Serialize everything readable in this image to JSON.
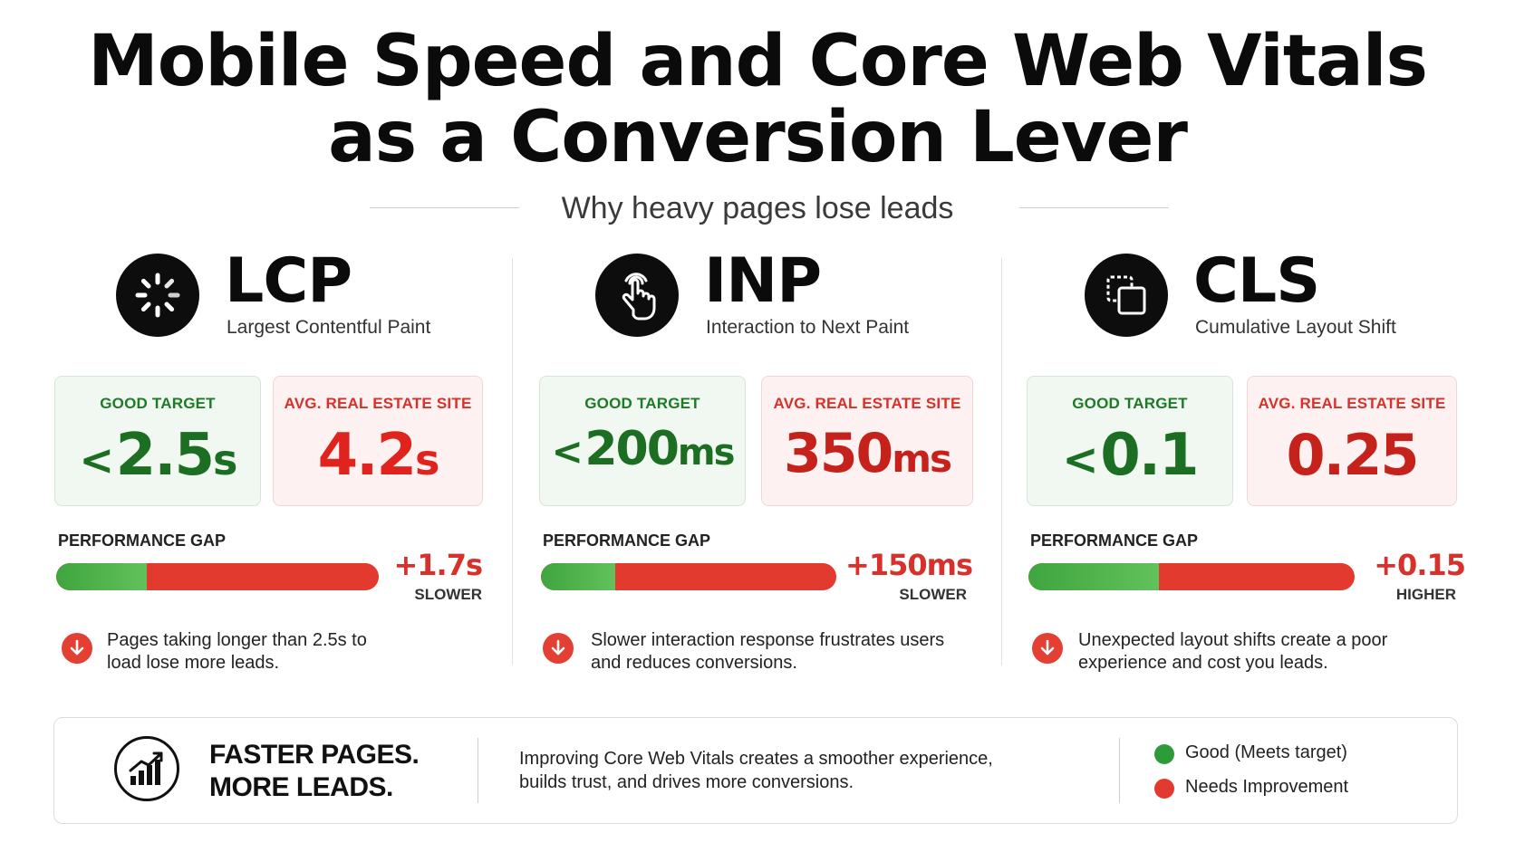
{
  "title": {
    "line1": "Mobile Speed and Core Web Vitals",
    "line2": "as a Conversion Lever"
  },
  "subtitle": "Why heavy pages lose leads",
  "metrics": [
    {
      "abbr": "LCP",
      "full": "Largest Contentful Paint",
      "icon": "loading-spinner-icon",
      "good_label": "GOOD TARGET",
      "good_prefix": "<",
      "good_value": "2.5",
      "good_unit": "s",
      "avg_label": "AVG. REAL ESTATE SITE",
      "avg_value": "4.2",
      "avg_unit": "s",
      "gap_label": "PERFORMANCE GAP",
      "gap_value": "+1.7s",
      "gap_word": "SLOWER",
      "bar_good_fraction": 0.28,
      "note": "Pages taking longer than 2.5s to load lose more leads."
    },
    {
      "abbr": "INP",
      "full": "Interaction to Next Paint",
      "icon": "hand-tap-icon",
      "good_label": "GOOD TARGET",
      "good_prefix": "<",
      "good_value": "200",
      "good_unit": "ms",
      "avg_label": "AVG. REAL ESTATE SITE",
      "avg_value": "350",
      "avg_unit": "ms",
      "gap_label": "PERFORMANCE GAP",
      "gap_value": "+150ms",
      "gap_word": "SLOWER",
      "bar_good_fraction": 0.25,
      "note": "Slower interaction response frustrates users and reduces conversions."
    },
    {
      "abbr": "CLS",
      "full": "Cumulative Layout Shift",
      "icon": "layout-shift-icon",
      "good_label": "GOOD TARGET",
      "good_prefix": "<",
      "good_value": "0.1",
      "good_unit": "",
      "avg_label": "AVG. REAL ESTATE SITE",
      "avg_value": "0.25",
      "avg_unit": "",
      "gap_label": "PERFORMANCE GAP",
      "gap_value": "+0.15",
      "gap_word": "HIGHER",
      "bar_good_fraction": 0.4,
      "note": "Unexpected layout shifts create a poor experience and cost you leads."
    }
  ],
  "footer": {
    "icon": "growth-chart-icon",
    "headline_line1": "FASTER PAGES.",
    "headline_line2": "MORE LEADS.",
    "description": "Improving Core Web Vitals creates a smoother experience, builds trust, and drives more conversions.",
    "legend": [
      {
        "label": "Good (Meets target)",
        "color": "#2e9b3a"
      },
      {
        "label": "Needs Improvement",
        "color": "#e23a2e"
      }
    ]
  },
  "colors": {
    "good": "#1b6e22",
    "bad": "#e0231d",
    "bar_green": "#4caf50",
    "bar_red": "#e23a2e"
  }
}
